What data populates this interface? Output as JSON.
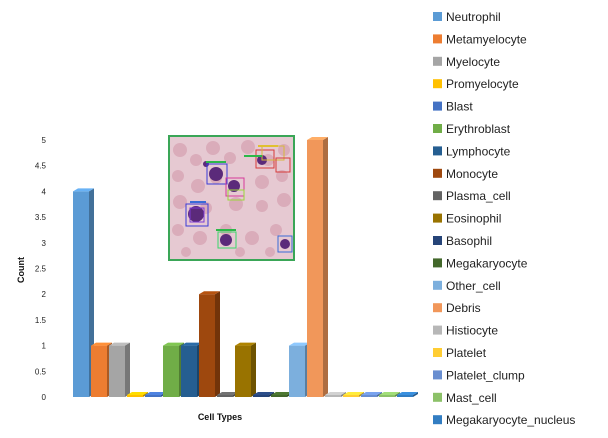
{
  "chart_data": {
    "type": "bar",
    "style": "3d-column",
    "categories": [
      "Neutrophil",
      "Metamyelocyte",
      "Myelocyte",
      "Promyelocyte",
      "Blast",
      "Erythroblast",
      "Lymphocyte",
      "Monocyte",
      "Plasma_cell",
      "Eosinophil",
      "Basophil",
      "Megakaryocyte",
      "Other_cell",
      "Debris",
      "Histiocyte",
      "Platelet",
      "Platelet_clump",
      "Mast_cell",
      "Megakaryocyte_nucleus"
    ],
    "values": [
      4,
      1,
      1,
      0,
      0,
      1,
      1,
      2,
      0,
      1,
      0,
      0,
      1,
      5,
      0,
      0,
      0,
      0,
      0
    ],
    "colors": [
      "#5b9bd5",
      "#ed7d31",
      "#a5a5a5",
      "#ffc000",
      "#4472c4",
      "#70ad47",
      "#255e91",
      "#9e480e",
      "#636363",
      "#997300",
      "#264478",
      "#43682b",
      "#7cafdd",
      "#f1975a",
      "#b7b7b7",
      "#ffcd33",
      "#698ed0",
      "#8cc168",
      "#327dc2"
    ],
    "xlabel": "Cell Types",
    "ylabel": "Count",
    "ylim": [
      0,
      5
    ],
    "yticks": [
      "0",
      "0.5",
      "1",
      "1.5",
      "2",
      "2.5",
      "3",
      "3.5",
      "4",
      "4.5",
      "5"
    ],
    "grid": false,
    "legend_position": "right",
    "inset_image": "blood-smear-microscopy-with-detection-boxes"
  }
}
